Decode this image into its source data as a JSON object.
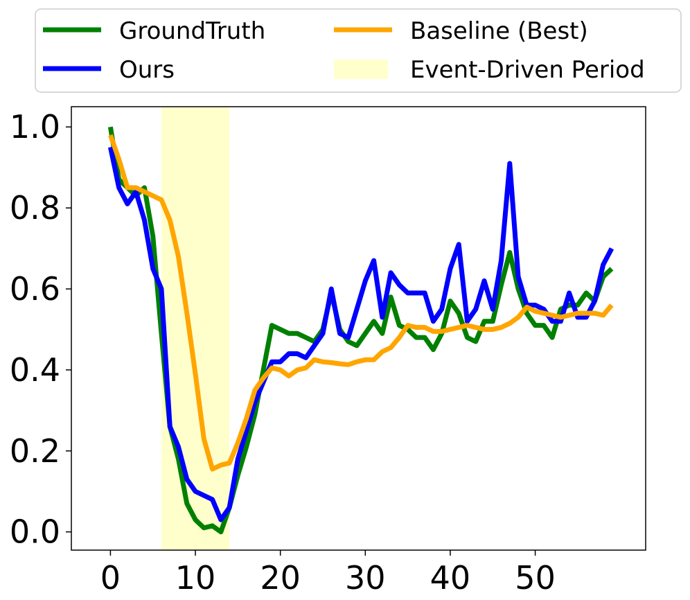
{
  "chart_data": {
    "type": "line",
    "title": "",
    "xlabel": "",
    "ylabel": "",
    "xlim": [
      -4.6,
      63
    ],
    "ylim": [
      -0.045,
      1.05
    ],
    "x_ticks": [
      0,
      10,
      20,
      30,
      40,
      50
    ],
    "x_tick_labels": [
      "0",
      "10",
      "20",
      "30",
      "40",
      "50"
    ],
    "y_ticks": [
      0.0,
      0.2,
      0.4,
      0.6,
      0.8,
      1.0
    ],
    "y_tick_labels": [
      "0.0",
      "0.2",
      "0.4",
      "0.6",
      "0.8",
      "1.0"
    ],
    "grid": false,
    "legend_position": "top",
    "shaded_region": {
      "label": "Event-Driven Period",
      "x_start": 6,
      "x_end": 14,
      "color": "#ffffcc"
    },
    "legend": [
      {
        "label": "GroundTruth",
        "color": "#008000",
        "kind": "line"
      },
      {
        "label": "Baseline (Best)",
        "color": "#ffa500",
        "kind": "line"
      },
      {
        "label": "Ours",
        "color": "#0000ff",
        "kind": "line"
      },
      {
        "label": "Event-Driven Period",
        "color": "#ffffcc",
        "kind": "patch"
      }
    ],
    "x": [
      0,
      1,
      2,
      3,
      4,
      5,
      6,
      7,
      8,
      9,
      10,
      11,
      12,
      13,
      14,
      15,
      16,
      17,
      18,
      19,
      20,
      21,
      22,
      23,
      24,
      25,
      26,
      27,
      28,
      29,
      30,
      31,
      32,
      33,
      34,
      35,
      36,
      37,
      38,
      39,
      40,
      41,
      42,
      43,
      44,
      45,
      46,
      47,
      48,
      49,
      50,
      51,
      52,
      53,
      54,
      55,
      56,
      57,
      58,
      59
    ],
    "series": [
      {
        "name": "GroundTruth",
        "color": "#008000",
        "values": [
          1.0,
          0.87,
          0.85,
          0.83,
          0.85,
          0.73,
          0.49,
          0.26,
          0.18,
          0.07,
          0.03,
          0.01,
          0.015,
          0.0,
          0.06,
          0.14,
          0.21,
          0.29,
          0.4,
          0.51,
          0.5,
          0.49,
          0.49,
          0.48,
          0.47,
          0.5,
          0.59,
          0.5,
          0.47,
          0.46,
          0.49,
          0.52,
          0.49,
          0.58,
          0.51,
          0.5,
          0.48,
          0.48,
          0.45,
          0.49,
          0.57,
          0.54,
          0.48,
          0.47,
          0.52,
          0.52,
          0.61,
          0.69,
          0.6,
          0.54,
          0.51,
          0.51,
          0.48,
          0.55,
          0.56,
          0.56,
          0.59,
          0.57,
          0.63,
          0.65
        ]
      },
      {
        "name": "Ours",
        "color": "#0000ff",
        "values": [
          0.95,
          0.85,
          0.81,
          0.84,
          0.77,
          0.65,
          0.6,
          0.26,
          0.21,
          0.13,
          0.1,
          0.09,
          0.08,
          0.03,
          0.06,
          0.18,
          0.25,
          0.32,
          0.37,
          0.42,
          0.42,
          0.44,
          0.44,
          0.43,
          0.46,
          0.49,
          0.6,
          0.49,
          0.48,
          0.55,
          0.62,
          0.67,
          0.53,
          0.64,
          0.61,
          0.59,
          0.59,
          0.59,
          0.52,
          0.55,
          0.65,
          0.71,
          0.52,
          0.55,
          0.62,
          0.55,
          0.67,
          0.91,
          0.63,
          0.56,
          0.56,
          0.55,
          0.52,
          0.52,
          0.59,
          0.53,
          0.53,
          0.57,
          0.66,
          0.7
        ]
      },
      {
        "name": "Baseline (Best)",
        "color": "#ffa500",
        "values": [
          0.98,
          0.92,
          0.85,
          0.85,
          0.84,
          0.83,
          0.82,
          0.77,
          0.68,
          0.54,
          0.39,
          0.23,
          0.155,
          0.165,
          0.17,
          0.22,
          0.28,
          0.35,
          0.38,
          0.405,
          0.4,
          0.385,
          0.4,
          0.405,
          0.425,
          0.42,
          0.418,
          0.415,
          0.413,
          0.42,
          0.425,
          0.425,
          0.445,
          0.455,
          0.48,
          0.51,
          0.505,
          0.505,
          0.495,
          0.495,
          0.5,
          0.505,
          0.51,
          0.505,
          0.5,
          0.5,
          0.505,
          0.515,
          0.53,
          0.555,
          0.545,
          0.54,
          0.535,
          0.53,
          0.535,
          0.54,
          0.54,
          0.54,
          0.535,
          0.56
        ]
      }
    ]
  }
}
